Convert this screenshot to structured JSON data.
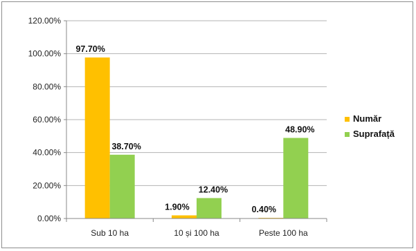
{
  "chart_data": {
    "type": "bar",
    "categories": [
      "Sub 10 ha",
      "10 și 100  ha",
      "Peste 100  ha"
    ],
    "series": [
      {
        "name": "Număr",
        "values": [
          97.7,
          1.9,
          0.4
        ],
        "labels": [
          "97.70%",
          "1.90%",
          "0.40%"
        ],
        "color": "#FFC000"
      },
      {
        "name": "Suprafață",
        "values": [
          38.7,
          12.4,
          48.9
        ],
        "labels": [
          "38.70%",
          "12.40%",
          "48.90%"
        ],
        "color": "#92D050"
      }
    ],
    "ylim": [
      0,
      120
    ],
    "yticks": [
      "0.00%",
      "20.00%",
      "40.00%",
      "60.00%",
      "80.00%",
      "100.00%",
      "120.00%"
    ],
    "grid": true,
    "legend": "right",
    "xlabel": "",
    "ylabel": "",
    "title": ""
  }
}
